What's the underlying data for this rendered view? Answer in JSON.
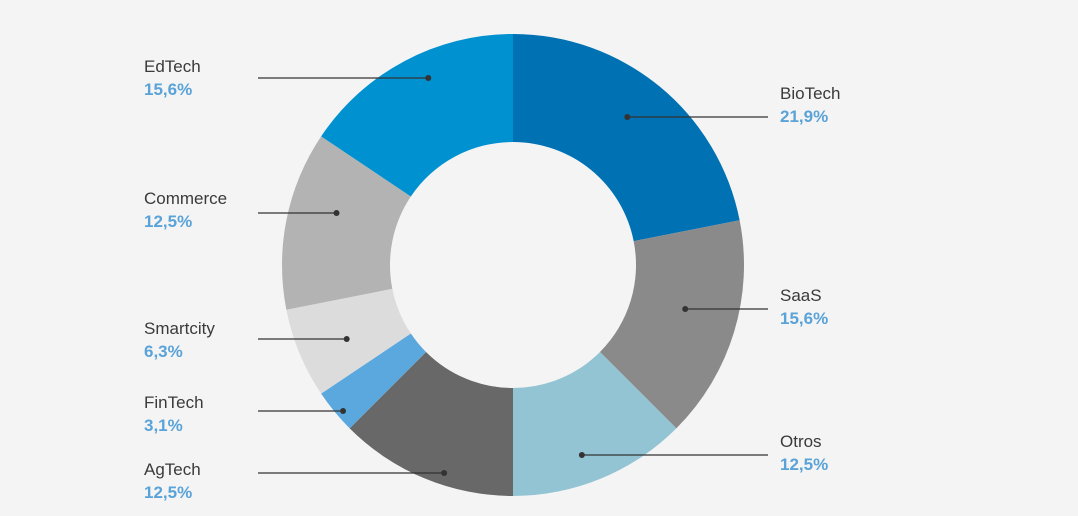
{
  "chart_data": {
    "type": "pie",
    "variant": "donut",
    "title": "",
    "legend": "none",
    "slices": [
      {
        "label": "BioTech",
        "percent_label": "21,9%",
        "value": 21.9,
        "color": "#0071b3"
      },
      {
        "label": "SaaS",
        "percent_label": "15,6%",
        "value": 15.6,
        "color": "#8a8a8a"
      },
      {
        "label": "Otros",
        "percent_label": "12,5%",
        "value": 12.5,
        "color": "#92c4d3"
      },
      {
        "label": "AgTech",
        "percent_label": "12,5%",
        "value": 12.5,
        "color": "#686868"
      },
      {
        "label": "FinTech",
        "percent_label": "3,1%",
        "value": 3.1,
        "color": "#5ba8df"
      },
      {
        "label": "Smartcity",
        "percent_label": "6,3%",
        "value": 6.3,
        "color": "#dcdcdc"
      },
      {
        "label": "Commerce",
        "percent_label": "12,5%",
        "value": 12.5,
        "color": "#b3b3b3"
      },
      {
        "label": "EdTech",
        "percent_label": "15,6%",
        "value": 15.6,
        "color": "#0091d0"
      }
    ]
  }
}
